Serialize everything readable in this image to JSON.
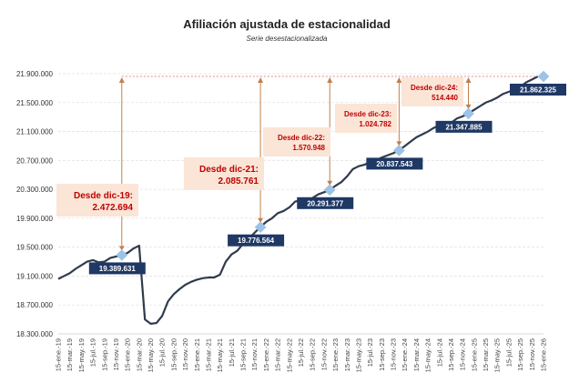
{
  "chart_data": {
    "type": "line",
    "title": "Afiliación ajustada de estacionalidad",
    "subtitle": "Serie desestacionalizada",
    "ylim": [
      18300000,
      21900000
    ],
    "yticks": [
      "18.300.000",
      "18.700.000",
      "19.100.000",
      "19.500.000",
      "19.900.000",
      "20.300.000",
      "20.700.000",
      "21.100.000",
      "21.500.000",
      "21.900.000"
    ],
    "ytick_values": [
      18300000,
      18700000,
      19100000,
      19500000,
      19900000,
      20300000,
      20700000,
      21100000,
      21500000,
      21900000
    ],
    "xticks": [
      "15-ene.-19",
      "15-mar.-19",
      "15-may.-19",
      "15-jul.-19",
      "15-sep.-19",
      "15-nov.-19",
      "15-ene.-20",
      "15-mar.-20",
      "15-may.-20",
      "15-jul.-20",
      "15-sep.-20",
      "15-nov.-20",
      "15-ene.-21",
      "15-mar.-21",
      "15-may.-21",
      "15-jul.-21",
      "15-sep.-21",
      "15-nov.-21",
      "15-ene.-22",
      "15-mar.-22",
      "15-may.-22",
      "15-jul.-22",
      "15-sep.-22",
      "15-nov.-22",
      "15-ene.-23",
      "15-mar.-23",
      "15-may.-23",
      "15-jul.-23",
      "15-sep.-23",
      "15-nov.-23",
      "15-ene.-24",
      "15-mar.-24",
      "15-may.-24",
      "15-jul.-24",
      "15-sep.-24",
      "15-nov.-24",
      "15-ene.-25",
      "15-mar.-25",
      "15-may.-25",
      "15-jul.-25",
      "15-sep.-25",
      "15-nov.-25",
      "15-ene.-26"
    ],
    "grid": true,
    "line_color": "#2f3b4c",
    "values_millions": [
      19.06,
      19.1,
      19.14,
      19.2,
      19.25,
      19.3,
      19.32,
      19.29,
      19.3,
      19.35,
      19.37,
      19.39,
      19.42,
      19.48,
      19.52,
      18.5,
      18.44,
      18.45,
      18.55,
      18.75,
      18.85,
      18.92,
      18.98,
      19.02,
      19.05,
      19.07,
      19.08,
      19.08,
      19.12,
      19.3,
      19.4,
      19.45,
      19.55,
      19.62,
      19.7,
      19.78,
      19.85,
      19.9,
      19.97,
      20.0,
      20.05,
      20.13,
      20.15,
      20.15,
      20.18,
      20.23,
      20.26,
      20.29,
      20.35,
      20.4,
      20.48,
      20.58,
      20.62,
      20.64,
      20.68,
      20.7,
      20.74,
      20.77,
      20.8,
      20.84,
      20.9,
      20.96,
      21.02,
      21.06,
      21.1,
      21.15,
      21.18,
      21.18,
      21.22,
      21.28,
      21.31,
      21.35,
      21.4,
      21.45,
      21.5,
      21.53,
      21.57,
      21.62,
      21.65,
      21.68,
      21.72,
      21.78,
      21.82,
      21.86
    ],
    "markers": [
      {
        "month": 11,
        "value": 19389631,
        "label": "19.389.631"
      },
      {
        "month": 35,
        "value": 19776564,
        "label": "19.776.564"
      },
      {
        "month": 47,
        "value": 20291377,
        "label": "20.291.377"
      },
      {
        "month": 59,
        "value": 20837543,
        "label": "20.837.543"
      },
      {
        "month": 71,
        "value": 21347885,
        "label": "21.347.885"
      },
      {
        "month": 84,
        "value": 21862325,
        "label": "21.862.325"
      }
    ],
    "annotations": [
      {
        "title": "Desde dic-19:",
        "value": "2.472.694"
      },
      {
        "title": "Desde dic-21:",
        "value": "2.085.761"
      },
      {
        "title": "Desde dic-22:",
        "value": "1.570.948"
      },
      {
        "title": "Desde dic-23:",
        "value": "1.024.782"
      },
      {
        "title": "Desde dic-24:",
        "value": "514.440"
      }
    ],
    "colors": {
      "marker": "#9dc3e6",
      "label_bg": "#1f3864",
      "annotation_bg": "#fbe5d6",
      "annotation_text": "#c00000",
      "arrow": "#c0804d",
      "top_line": "#e06060"
    }
  }
}
